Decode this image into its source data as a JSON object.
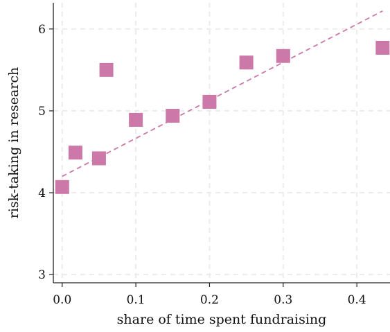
{
  "chart_data": {
    "type": "scatter",
    "title": "",
    "xlabel": "share of time spent fundraising",
    "ylabel": "risk-taking in research",
    "xlim": [
      -0.012,
      0.445
    ],
    "ylim": [
      2.9,
      6.32
    ],
    "xticks": [
      0.0,
      0.1,
      0.2,
      0.3,
      0.4
    ],
    "xtick_labels": [
      "0.0",
      "0.1",
      "0.2",
      "0.3",
      "0.4"
    ],
    "yticks": [
      3,
      4,
      5,
      6
    ],
    "ytick_labels": [
      "3",
      "4",
      "5",
      "6"
    ],
    "grid": true,
    "legend": "none",
    "colors": {
      "marker": "#cc78a8",
      "fit_line": "#cc78a8",
      "grid": "#ebebeb",
      "axis": "#222222"
    },
    "series": [
      {
        "points": [
          {
            "x": 0.0,
            "y": 4.07
          },
          {
            "x": 0.018,
            "y": 4.49
          },
          {
            "x": 0.05,
            "y": 4.42
          },
          {
            "x": 0.06,
            "y": 5.5
          },
          {
            "x": 0.1,
            "y": 4.89
          },
          {
            "x": 0.15,
            "y": 4.94
          },
          {
            "x": 0.2,
            "y": 5.11
          },
          {
            "x": 0.25,
            "y": 5.59
          },
          {
            "x": 0.3,
            "y": 5.67
          },
          {
            "x": 0.435,
            "y": 5.77
          }
        ]
      }
    ],
    "fit_line": {
      "style": "dashed",
      "points": [
        {
          "x": 0.0,
          "y": 4.2
        },
        {
          "x": 0.435,
          "y": 6.22
        }
      ]
    }
  }
}
